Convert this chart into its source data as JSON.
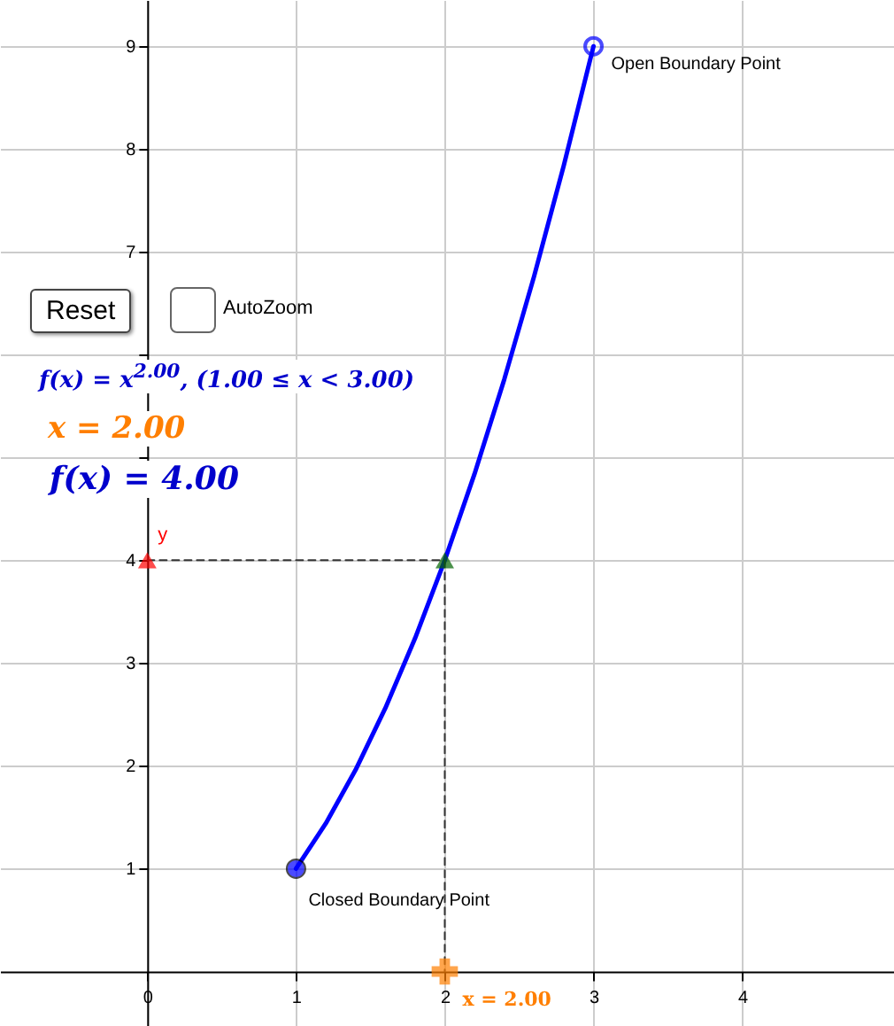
{
  "chart_data": {
    "type": "line",
    "x": [
      1,
      1.2,
      1.4,
      1.6,
      1.8,
      2,
      2.2,
      2.4,
      2.6,
      2.8,
      3
    ],
    "series": [
      {
        "color": "#0000ff",
        "values": [
          1,
          1.44,
          1.96,
          2.56,
          3.24,
          4,
          4.84,
          5.76,
          6.76,
          7.84,
          9
        ]
      },
      {
        "color": "#333333",
        "line_style": "dashed",
        "x": [
          0,
          2,
          2
        ],
        "values": [
          4,
          4,
          0
        ]
      },
      {
        "type": "scatter",
        "color": "#0000ff",
        "marker": "circle",
        "x": [
          1
        ],
        "values": [
          1
        ]
      },
      {
        "type": "scatter",
        "color": "#0000ff",
        "x": [
          3
        ],
        "values": [
          9
        ]
      },
      {
        "type": "scatter",
        "color": "#ff0000",
        "marker": "triangle",
        "x": [
          0
        ],
        "values": [
          4
        ]
      },
      {
        "type": "scatter",
        "color": "#006400",
        "marker": "triangle",
        "x": [
          2
        ],
        "values": [
          4
        ]
      },
      {
        "type": "scatter",
        "color": "#ff7f00",
        "marker": "cross",
        "x": [
          2
        ],
        "values": [
          0
        ]
      }
    ],
    "xlim": [
      -0.99,
      5.02
    ],
    "ylim": [
      -0.53,
      9.45
    ],
    "xticks": [
      0,
      1,
      2,
      3,
      4
    ],
    "yticks": [
      1,
      2,
      3,
      4,
      {
        "value": 5,
        "label": null
      },
      {
        "value": 6,
        "label": null
      },
      7,
      8,
      9
    ],
    "grid": true,
    "annotations": [
      "Reset",
      "AutoZoom",
      "f(x) = x$^{2.00}$,    (1.00 ≤ x < 3.00)",
      "x = 2.00",
      "f(x) = 4.00",
      {
        "text": "Open Boundary Point",
        "x": 3,
        "y": 9
      },
      {
        "text": "Closed Boundary Point",
        "x": 1,
        "y": 1
      },
      {
        "text": "y",
        "x": 0,
        "y": 4
      },
      {
        "text": "x = 2.00",
        "x": 2,
        "y": 0
      }
    ]
  }
}
